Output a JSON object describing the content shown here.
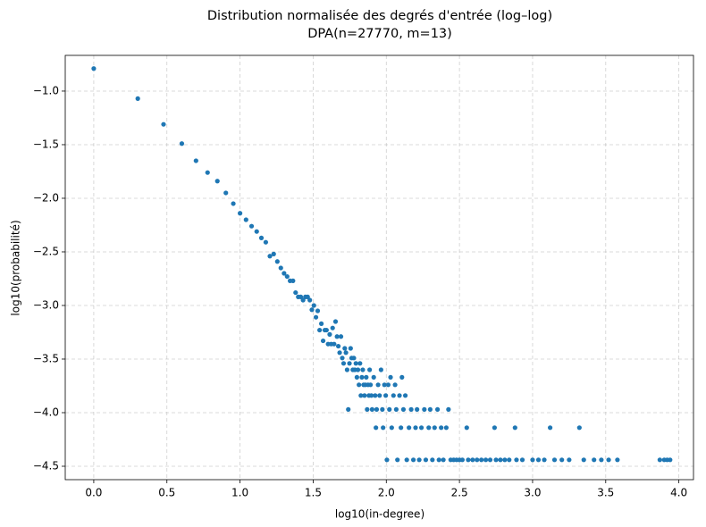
{
  "chart_data": {
    "type": "scatter",
    "title": "Distribution normalisée des degrés d'entrée (log–log)",
    "subtitle": "DPA(n=27770, m=13)",
    "x_label": "log10(in-degree)",
    "y_label": "log10(probabilité)",
    "color": "#1f77b4",
    "grid": true,
    "xlim": [
      -0.195,
      4.1
    ],
    "ylim": [
      -4.625,
      -0.667
    ],
    "xticks": [
      {
        "value": 0,
        "label": "0.0"
      },
      {
        "value": 0.5,
        "label": "0.5"
      },
      {
        "value": 1,
        "label": "1.0"
      },
      {
        "value": 1.5,
        "label": "1.5"
      },
      {
        "value": 2,
        "label": "2.0"
      },
      {
        "value": 2.5,
        "label": "2.5"
      },
      {
        "value": 3,
        "label": "3.0"
      },
      {
        "value": 3.5,
        "label": "3.5"
      },
      {
        "value": 4,
        "label": "4.0"
      }
    ],
    "yticks": [
      {
        "value": -1,
        "label": "−1.0"
      },
      {
        "value": -1.5,
        "label": "−1.5"
      },
      {
        "value": -2,
        "label": "−2.0"
      },
      {
        "value": -2.5,
        "label": "−2.5"
      },
      {
        "value": -3,
        "label": "−3.0"
      },
      {
        "value": -3.5,
        "label": "−3.5"
      },
      {
        "value": -4,
        "label": "−4.0"
      },
      {
        "value": -4.5,
        "label": "−4.5"
      }
    ],
    "x": [
      0,
      0.301,
      0.477,
      0.602,
      0.699,
      0.778,
      0.845,
      0.903,
      0.954,
      1.0,
      1.041,
      1.079,
      1.114,
      1.146,
      1.176,
      1.204,
      1.23,
      1.255,
      1.279,
      1.301,
      1.322,
      1.342,
      1.362,
      1.38,
      1.398,
      1.415,
      1.431,
      1.447,
      1.462,
      1.477,
      1.491,
      1.505,
      1.519,
      1.531,
      1.544,
      1.556,
      1.568,
      1.58,
      1.591,
      1.602,
      1.613,
      1.623,
      1.633,
      1.643,
      1.653,
      1.663,
      1.672,
      1.681,
      1.69,
      1.699,
      1.708,
      1.716,
      1.724,
      1.732,
      1.74,
      1.748,
      1.756,
      1.763,
      1.771,
      1.778,
      1.785,
      1.792,
      1.799,
      1.806,
      1.813,
      1.82,
      1.826,
      1.833,
      1.839,
      1.845,
      1.851,
      1.857,
      1.863,
      1.869,
      1.875,
      1.881,
      1.886,
      1.892,
      1.898,
      1.903,
      1.914,
      1.924,
      1.929,
      1.934,
      1.944,
      1.954,
      1.964,
      1.973,
      1.978,
      1.987,
      1.996,
      2.004,
      2.013,
      2.021,
      2.029,
      2.037,
      2.049,
      2.06,
      2.068,
      2.076,
      2.09,
      2.1,
      2.107,
      2.117,
      2.13,
      2.14,
      2.155,
      2.17,
      2.185,
      2.2,
      2.21,
      2.225,
      2.24,
      2.26,
      2.27,
      2.29,
      2.3,
      2.315,
      2.33,
      2.35,
      2.36,
      2.375,
      2.39,
      2.41,
      2.425,
      2.44,
      2.46,
      2.48,
      2.5,
      2.52,
      2.55,
      2.56,
      2.59,
      2.62,
      2.65,
      2.68,
      2.71,
      2.74,
      2.75,
      2.78,
      2.81,
      2.84,
      2.88,
      2.89,
      2.93,
      3.0,
      3.04,
      3.08,
      3.12,
      3.15,
      3.2,
      3.25,
      3.32,
      3.35,
      3.42,
      3.47,
      3.52,
      3.58,
      3.87,
      3.9,
      3.92,
      3.94
    ],
    "y": [
      -0.79,
      -1.07,
      -1.31,
      -1.49,
      -1.65,
      -1.76,
      -1.84,
      -1.95,
      -2.05,
      -2.14,
      -2.2,
      -2.26,
      -2.31,
      -2.37,
      -2.41,
      -2.54,
      -2.52,
      -2.59,
      -2.65,
      -2.7,
      -2.73,
      -2.77,
      -2.77,
      -2.88,
      -2.92,
      -2.92,
      -2.95,
      -2.92,
      -2.92,
      -2.95,
      -3.04,
      -3.0,
      -3.11,
      -3.05,
      -3.23,
      -3.17,
      -3.33,
      -3.23,
      -3.23,
      -3.36,
      -3.27,
      -3.36,
      -3.21,
      -3.36,
      -3.15,
      -3.29,
      -3.38,
      -3.44,
      -3.29,
      -3.49,
      -3.54,
      -3.4,
      -3.44,
      -3.6,
      -3.97,
      -3.54,
      -3.4,
      -3.49,
      -3.6,
      -3.49,
      -3.6,
      -3.54,
      -3.67,
      -3.6,
      -3.74,
      -3.54,
      -3.84,
      -3.67,
      -3.6,
      -3.74,
      -3.84,
      -3.74,
      -3.67,
      -3.97,
      -3.74,
      -3.84,
      -3.6,
      -3.74,
      -3.84,
      -3.97,
      -3.67,
      -3.84,
      -4.14,
      -3.97,
      -3.74,
      -3.84,
      -3.6,
      -3.97,
      -4.14,
      -3.74,
      -3.84,
      -4.44,
      -3.74,
      -3.97,
      -3.67,
      -4.14,
      -3.84,
      -3.74,
      -3.97,
      -4.44,
      -3.84,
      -4.14,
      -3.67,
      -3.97,
      -3.84,
      -4.44,
      -4.14,
      -3.97,
      -4.44,
      -4.14,
      -3.97,
      -4.44,
      -4.14,
      -3.97,
      -4.44,
      -4.14,
      -3.97,
      -4.44,
      -4.14,
      -3.97,
      -4.44,
      -4.14,
      -4.44,
      -4.14,
      -3.97,
      -4.44,
      -4.44,
      -4.44,
      -4.44,
      -4.44,
      -4.14,
      -4.44,
      -4.44,
      -4.44,
      -4.44,
      -4.44,
      -4.44,
      -4.14,
      -4.44,
      -4.44,
      -4.44,
      -4.44,
      -4.14,
      -4.44,
      -4.44,
      -4.44,
      -4.44,
      -4.44,
      -4.14,
      -4.44,
      -4.44,
      -4.44,
      -4.14,
      -4.44,
      -4.44,
      -4.44,
      -4.44,
      -4.44,
      -4.44,
      -4.44,
      -4.44,
      -4.44
    ]
  }
}
